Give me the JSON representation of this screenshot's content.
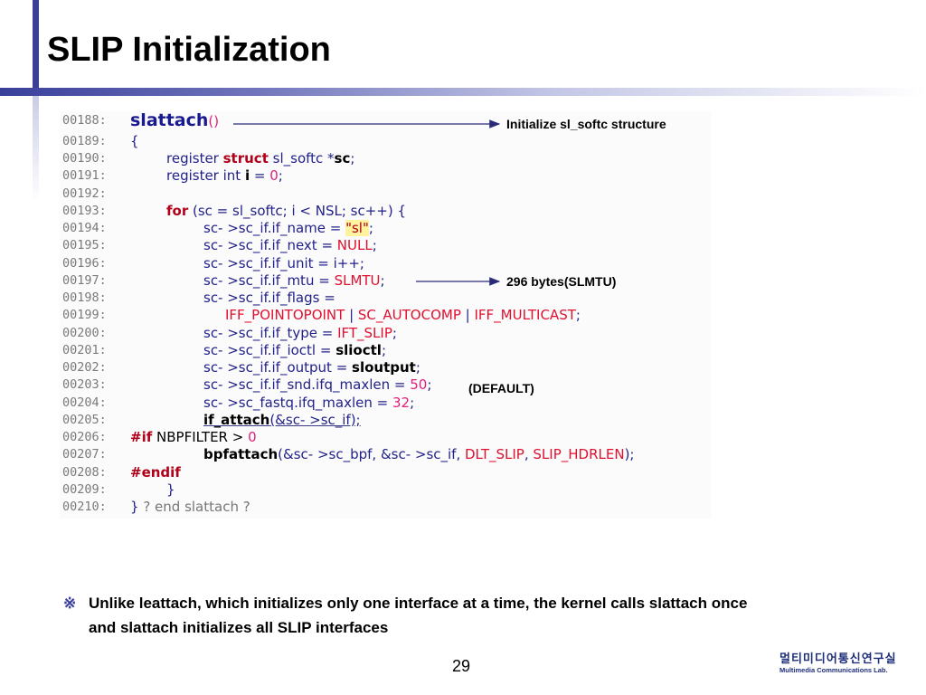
{
  "slide": {
    "title": "SLIP Initialization",
    "page_number": "29"
  },
  "code_lines": [
    {
      "n": "00188:"
    },
    {
      "n": "00189:"
    },
    {
      "n": "00190:"
    },
    {
      "n": "00191:"
    },
    {
      "n": "00192:"
    },
    {
      "n": "00193:"
    },
    {
      "n": "00194:"
    },
    {
      "n": "00195:"
    },
    {
      "n": "00196:"
    },
    {
      "n": "00197:"
    },
    {
      "n": "00198:"
    },
    {
      "n": "00199:"
    },
    {
      "n": "00200:"
    },
    {
      "n": "00201:"
    },
    {
      "n": "00202:"
    },
    {
      "n": "00203:"
    },
    {
      "n": "00204:"
    },
    {
      "n": "00205:"
    },
    {
      "n": "00206:"
    },
    {
      "n": "00207:"
    },
    {
      "n": "00208:"
    },
    {
      "n": "00209:"
    },
    {
      "n": "00210:"
    }
  ],
  "code": {
    "l188": {
      "fn": "slattach",
      "paren": "()"
    },
    "l189": "{",
    "l190": {
      "a": "register ",
      "kw": "struct",
      "b": " sl_softc *",
      "bold": "sc",
      "c": ";"
    },
    "l191": {
      "a": "register int ",
      "bold": "i",
      "b": " = ",
      "num": "0",
      "c": ";"
    },
    "l193": {
      "kw": "for",
      "a": " (sc = sl_softc; i < NSL; sc++) {"
    },
    "l194": {
      "a": "sc- >sc_if.if_name = ",
      "str": "\"sl\"",
      "b": ";"
    },
    "l195": {
      "a": "sc- >sc_if.if_next = ",
      "red": "NULL",
      "b": ";"
    },
    "l196": {
      "a": "sc- >sc_if.if_unit = i++;"
    },
    "l197": {
      "a": "sc- >sc_if.if_mtu = ",
      "red": "SLMTU",
      "b": ";"
    },
    "l198": {
      "a": "sc- >sc_if.if_flags ="
    },
    "l199": {
      "red1": "IFF_POINTOPOINT",
      "sep1": " | ",
      "red2": "SC_AUTOCOMP",
      "sep2": " | ",
      "red3": "IFF_MULTICAST",
      "end": ";"
    },
    "l200": {
      "a": "sc- >sc_if.if_type = ",
      "red": "IFT_SLIP",
      "b": ";"
    },
    "l201": {
      "a": "sc- >sc_if.if_ioctl = ",
      "bold": "slioctl",
      "b": ";"
    },
    "l202": {
      "a": "sc- >sc_if.if_output = ",
      "bold": "sloutput",
      "b": ";"
    },
    "l203": {
      "a": "sc- >sc_if.if_snd.ifq_maxlen = ",
      "num": "50",
      "b": ";"
    },
    "l204": {
      "a": "sc- >sc_fastq.ifq_maxlen = ",
      "num": "32",
      "b": ";"
    },
    "l205": {
      "bold": "if_attach",
      "a": "(&sc- >sc_if);"
    },
    "l206": {
      "pp": "#if",
      "a": " NBPFILTER > ",
      "num": "0"
    },
    "l207": {
      "bold": "bpfattach",
      "a": "(&sc- >sc_bpf, &sc- >sc_if, ",
      "red1": "DLT_SLIP",
      "sep": ", ",
      "red2": "SLIP_HDRLEN",
      "end": ");"
    },
    "l208": {
      "pp": "#endif"
    },
    "l209": "}",
    "l210": {
      "brace": "}",
      "comment": " ? end slattach ?"
    }
  },
  "annotations": {
    "init": "Initialize sl_softc structure",
    "mtu": "296 bytes(SLMTU)",
    "default": "(DEFAULT)"
  },
  "note": {
    "mark": "※",
    "line1": "Unlike leattach, which initializes only one interface at a time, the kernel calls slattach once",
    "line2": "and slattach initializes all SLIP interfaces"
  },
  "logo": {
    "korean": "멀티미디어통신연구실",
    "english": "Multimedia Communications Lab."
  },
  "colors": {
    "accent": "#3a3f9a",
    "keyword": "#b0001a",
    "identifier": "#22228a"
  }
}
